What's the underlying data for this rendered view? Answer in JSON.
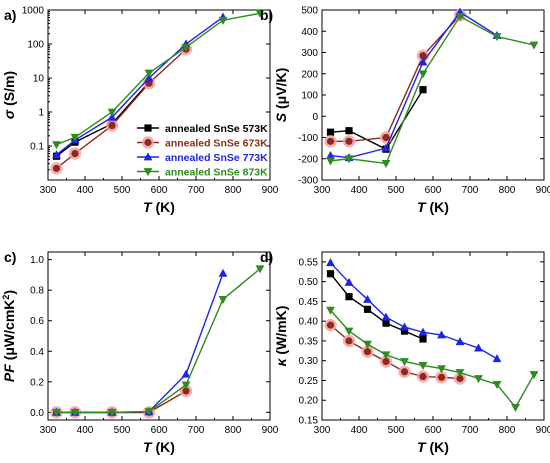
{
  "colors": {
    "573": "#000000",
    "673": "#8B2C1A",
    "773": "#1E24E8",
    "873": "#2E8B1E",
    "halo": "#F4A0A8"
  },
  "legend": [
    "annealed SnSe 573K",
    "annealed SnSe 673K",
    "annealed SnSe 773K",
    "annealed SnSe 873K"
  ],
  "chart_data": [
    {
      "panel": "a)",
      "type": "line",
      "scale": "log",
      "xlabel": "T (K)",
      "ylabel": "σ (S/m)",
      "xlim": [
        300,
        900
      ],
      "ylim": [
        0.01,
        1000
      ],
      "xticks": [
        "300",
        "400",
        "500",
        "600",
        "700",
        "800",
        "900"
      ],
      "yticks": [
        "0.1",
        "1",
        "10",
        "100",
        "1000"
      ],
      "legend_position": "bottom-right",
      "series": [
        {
          "name": "annealed SnSe 573K",
          "marker": "square",
          "x": [
            323,
            373,
            473,
            573
          ],
          "y": [
            0.05,
            0.13,
            0.45,
            7.5
          ]
        },
        {
          "name": "annealed SnSe 673K",
          "marker": "circle",
          "x": [
            323,
            373,
            473,
            573,
            673
          ],
          "y": [
            0.022,
            0.06,
            0.4,
            7.0,
            70
          ]
        },
        {
          "name": "annealed SnSe 773K",
          "marker": "triangle-up",
          "x": [
            323,
            373,
            473,
            573,
            673,
            773
          ],
          "y": [
            0.055,
            0.15,
            0.7,
            10,
            100,
            620
          ]
        },
        {
          "name": "annealed SnSe 873K",
          "marker": "triangle-down",
          "x": [
            323,
            373,
            473,
            573,
            673,
            773,
            873
          ],
          "y": [
            0.11,
            0.18,
            1.0,
            14,
            80,
            500,
            800
          ]
        }
      ]
    },
    {
      "panel": "b)",
      "type": "line",
      "xlabel": "T (K)",
      "ylabel": "S (μV/K)",
      "xlim": [
        300,
        900
      ],
      "ylim": [
        -300,
        500
      ],
      "xticks": [
        "300",
        "400",
        "500",
        "600",
        "700",
        "800",
        "900"
      ],
      "yticks": [
        "-300",
        "-200",
        "-100",
        "0",
        "100",
        "200",
        "300",
        "400",
        "500"
      ],
      "series": [
        {
          "name": "annealed SnSe 573K",
          "marker": "square",
          "x": [
            323,
            373,
            473,
            573
          ],
          "y": [
            -75,
            -68,
            -155,
            125
          ]
        },
        {
          "name": "annealed SnSe 673K",
          "marker": "circle",
          "x": [
            323,
            373,
            473,
            573,
            673
          ],
          "y": [
            -118,
            -118,
            -100,
            285,
            475
          ]
        },
        {
          "name": "annealed SnSe 773K",
          "marker": "triangle-up",
          "x": [
            323,
            373,
            473,
            573,
            673,
            773
          ],
          "y": [
            -185,
            -195,
            -150,
            255,
            490,
            380
          ]
        },
        {
          "name": "annealed SnSe 873K",
          "marker": "triangle-down",
          "x": [
            323,
            373,
            473,
            573,
            673,
            773,
            873
          ],
          "y": [
            -210,
            -200,
            -222,
            200,
            470,
            375,
            335
          ]
        }
      ]
    },
    {
      "panel": "c)",
      "type": "line",
      "xlabel": "T (K)",
      "ylabel": "PF (μW/cmK²)",
      "xlim": [
        300,
        900
      ],
      "ylim": [
        -0.05,
        1.05
      ],
      "xticks": [
        "300",
        "400",
        "500",
        "600",
        "700",
        "800",
        "900"
      ],
      "yticks": [
        "0.0",
        "0.2",
        "0.4",
        "0.6",
        "0.8",
        "1.0"
      ],
      "series": [
        {
          "name": "annealed SnSe 573K",
          "marker": "square",
          "x": [
            323,
            373,
            473,
            573
          ],
          "y": [
            0.0,
            0.0,
            0.0,
            0.0
          ]
        },
        {
          "name": "annealed SnSe 673K",
          "marker": "circle",
          "x": [
            323,
            373,
            473,
            573,
            673
          ],
          "y": [
            0.0,
            0.0,
            0.0,
            0.0,
            0.14
          ]
        },
        {
          "name": "annealed SnSe 773K",
          "marker": "triangle-up",
          "x": [
            323,
            373,
            473,
            573,
            673,
            773
          ],
          "y": [
            0.0,
            0.0,
            0.0,
            0.005,
            0.25,
            0.91
          ]
        },
        {
          "name": "annealed SnSe 873K",
          "marker": "triangle-down",
          "x": [
            323,
            373,
            473,
            573,
            673,
            773,
            873
          ],
          "y": [
            0.0,
            0.0,
            0.0,
            0.005,
            0.18,
            0.74,
            0.94
          ]
        }
      ]
    },
    {
      "panel": "d)",
      "type": "line",
      "xlabel": "T (K)",
      "ylabel": "κ (W/mK)",
      "xlim": [
        300,
        900
      ],
      "ylim": [
        0.15,
        0.575
      ],
      "xticks": [
        "300",
        "400",
        "500",
        "600",
        "700",
        "800",
        "900"
      ],
      "yticks": [
        "0.15",
        "0.20",
        "0.25",
        "0.30",
        "0.35",
        "0.40",
        "0.45",
        "0.50",
        "0.55"
      ],
      "series": [
        {
          "name": "annealed SnSe 573K",
          "marker": "square",
          "x": [
            323,
            373,
            423,
            473,
            523,
            573
          ],
          "y": [
            0.52,
            0.462,
            0.43,
            0.395,
            0.375,
            0.355
          ]
        },
        {
          "name": "annealed SnSe 673K",
          "marker": "circle",
          "x": [
            323,
            373,
            423,
            473,
            523,
            573,
            623,
            673
          ],
          "y": [
            0.39,
            0.35,
            0.323,
            0.298,
            0.272,
            0.26,
            0.258,
            0.255
          ]
        },
        {
          "name": "annealed SnSe 773K",
          "marker": "triangle-up",
          "x": [
            323,
            373,
            423,
            473,
            523,
            573,
            623,
            673,
            723,
            773
          ],
          "y": [
            0.548,
            0.498,
            0.455,
            0.41,
            0.385,
            0.372,
            0.365,
            0.348,
            0.332,
            0.305
          ]
        },
        {
          "name": "annealed SnSe 873K",
          "marker": "triangle-down",
          "x": [
            323,
            373,
            423,
            473,
            523,
            573,
            623,
            673,
            723,
            773,
            823,
            873
          ],
          "y": [
            0.428,
            0.375,
            0.342,
            0.315,
            0.298,
            0.288,
            0.28,
            0.27,
            0.255,
            0.24,
            0.182,
            0.265
          ]
        }
      ]
    }
  ]
}
